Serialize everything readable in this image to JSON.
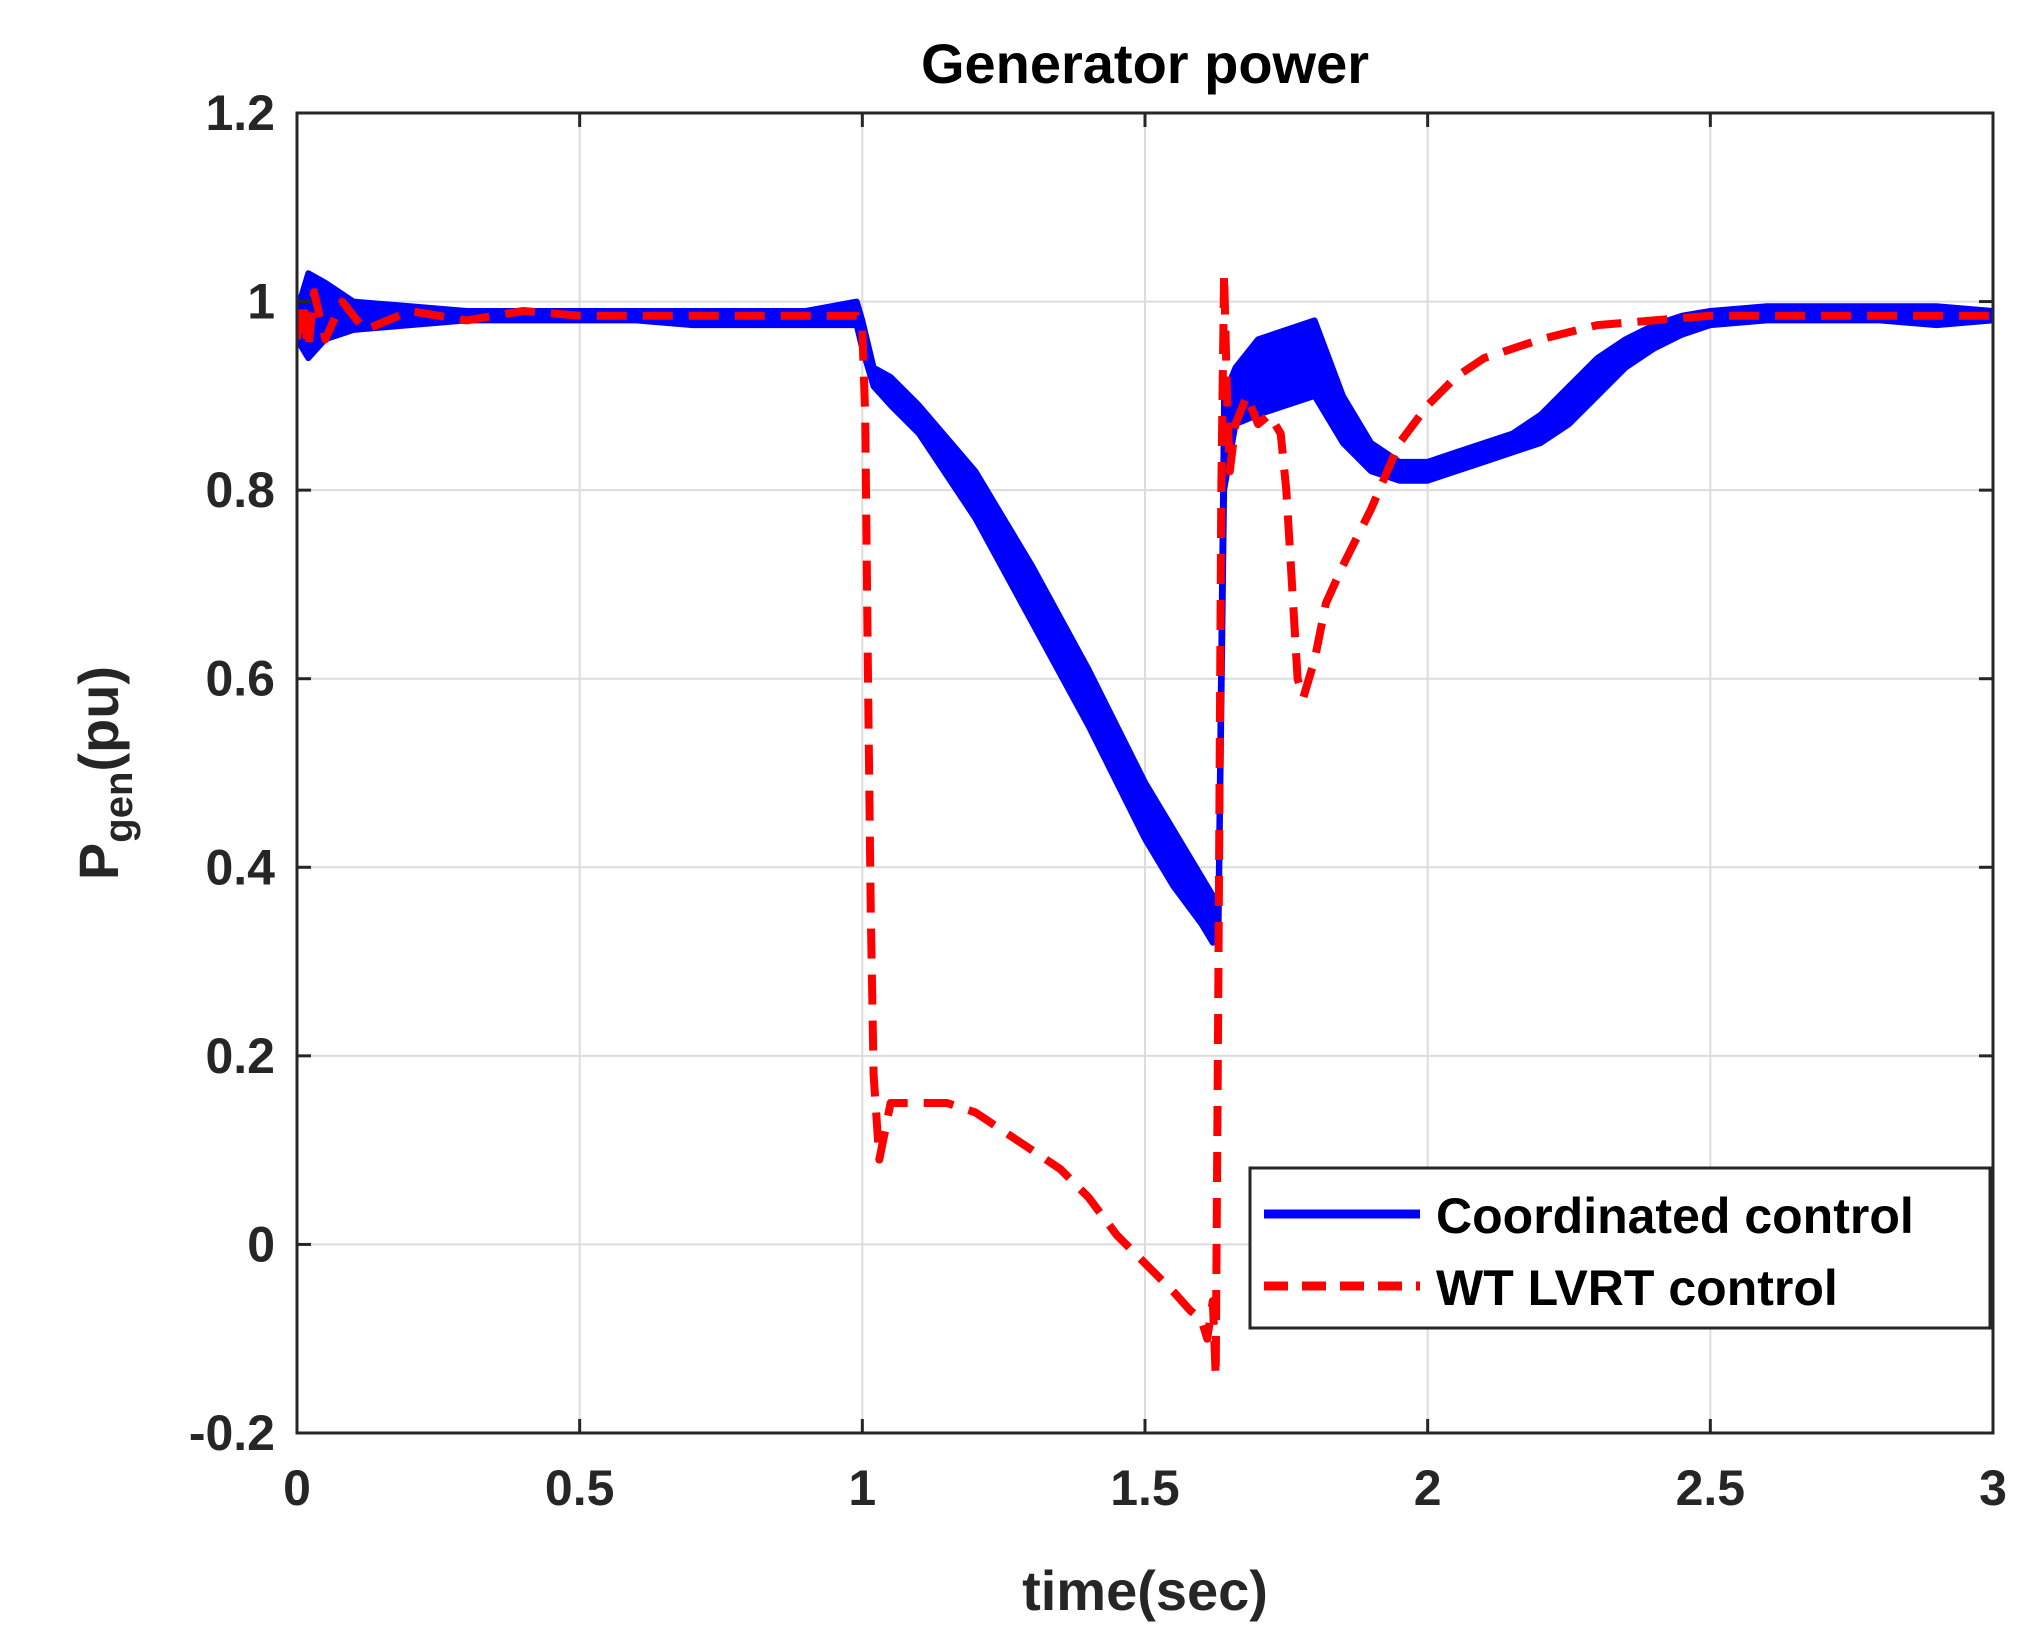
{
  "chart_data": {
    "type": "line",
    "title": "Generator power",
    "xlabel": "time(sec)",
    "ylabel_main": "P",
    "ylabel_sub": "gen",
    "ylabel_unit": "(pu)",
    "xlim": [
      0,
      3
    ],
    "ylim": [
      -0.2,
      1.2
    ],
    "xticks": [
      0,
      0.5,
      1,
      1.5,
      2,
      2.5,
      3
    ],
    "xtick_labels": [
      "0",
      "0.5",
      "1",
      "1.5",
      "2",
      "2.5",
      "3"
    ],
    "yticks": [
      -0.2,
      0,
      0.2,
      0.4,
      0.6,
      0.8,
      1,
      1.2
    ],
    "ytick_labels": [
      "-0.2",
      "0",
      "0.2",
      "0.4",
      "0.6",
      "0.8",
      "1",
      "1.2"
    ],
    "grid": true,
    "legend_position": "bottom-right",
    "series": [
      {
        "name": "Coordinated control",
        "color": "#0000ff",
        "style": "solid",
        "band": true,
        "x": [
          0,
          0.02,
          0.05,
          0.1,
          0.2,
          0.3,
          0.4,
          0.5,
          0.6,
          0.7,
          0.8,
          0.9,
          0.99,
          1.0,
          1.02,
          1.05,
          1.1,
          1.2,
          1.3,
          1.4,
          1.5,
          1.55,
          1.6,
          1.62,
          1.63,
          1.64,
          1.66,
          1.7,
          1.75,
          1.8,
          1.85,
          1.9,
          1.95,
          2.0,
          2.05,
          2.1,
          2.15,
          2.2,
          2.25,
          2.3,
          2.35,
          2.4,
          2.45,
          2.5,
          2.6,
          2.7,
          2.8,
          2.9,
          3.0
        ],
        "upper": [
          0.99,
          1.03,
          1.02,
          1.0,
          0.995,
          0.99,
          0.99,
          0.99,
          0.99,
          0.99,
          0.99,
          0.99,
          1.0,
          0.98,
          0.93,
          0.92,
          0.89,
          0.82,
          0.72,
          0.61,
          0.49,
          0.44,
          0.39,
          0.37,
          0.36,
          0.9,
          0.93,
          0.96,
          0.97,
          0.98,
          0.9,
          0.85,
          0.83,
          0.83,
          0.84,
          0.85,
          0.86,
          0.88,
          0.91,
          0.94,
          0.96,
          0.975,
          0.985,
          0.99,
          0.995,
          0.995,
          0.995,
          0.995,
          0.99
        ],
        "lower": [
          0.96,
          0.94,
          0.96,
          0.97,
          0.975,
          0.98,
          0.98,
          0.98,
          0.98,
          0.975,
          0.975,
          0.975,
          0.975,
          0.95,
          0.91,
          0.89,
          0.86,
          0.77,
          0.66,
          0.55,
          0.43,
          0.38,
          0.34,
          0.32,
          0.33,
          0.8,
          0.87,
          0.88,
          0.89,
          0.9,
          0.85,
          0.82,
          0.81,
          0.81,
          0.82,
          0.83,
          0.84,
          0.85,
          0.87,
          0.9,
          0.93,
          0.95,
          0.965,
          0.975,
          0.98,
          0.98,
          0.98,
          0.975,
          0.98
        ]
      },
      {
        "name": "WT LVRT control",
        "color": "#ff0000",
        "style": "dashed",
        "x": [
          0,
          0.01,
          0.02,
          0.03,
          0.05,
          0.08,
          0.12,
          0.2,
          0.3,
          0.4,
          0.5,
          0.6,
          0.7,
          0.8,
          0.9,
          0.99,
          1.0,
          1.005,
          1.01,
          1.015,
          1.02,
          1.03,
          1.05,
          1.1,
          1.15,
          1.2,
          1.25,
          1.3,
          1.35,
          1.4,
          1.45,
          1.5,
          1.55,
          1.58,
          1.6,
          1.61,
          1.62,
          1.625,
          1.63,
          1.635,
          1.64,
          1.645,
          1.65,
          1.66,
          1.68,
          1.7,
          1.72,
          1.74,
          1.75,
          1.76,
          1.77,
          1.78,
          1.8,
          1.82,
          1.85,
          1.9,
          1.95,
          2.0,
          2.05,
          2.1,
          2.2,
          2.3,
          2.4,
          2.5,
          2.6,
          2.7,
          2.8,
          2.9,
          3.0
        ],
        "y": [
          0.96,
          1.0,
          0.95,
          1.01,
          0.96,
          1.0,
          0.97,
          0.99,
          0.98,
          0.99,
          0.985,
          0.985,
          0.985,
          0.985,
          0.985,
          0.985,
          0.97,
          0.88,
          0.6,
          0.35,
          0.18,
          0.09,
          0.15,
          0.15,
          0.15,
          0.14,
          0.12,
          0.1,
          0.08,
          0.05,
          0.01,
          -0.02,
          -0.05,
          -0.07,
          -0.08,
          -0.1,
          -0.06,
          -0.14,
          0.3,
          0.8,
          1.03,
          0.9,
          0.82,
          0.87,
          0.9,
          0.87,
          0.88,
          0.86,
          0.8,
          0.7,
          0.6,
          0.58,
          0.62,
          0.68,
          0.72,
          0.78,
          0.85,
          0.89,
          0.92,
          0.94,
          0.96,
          0.975,
          0.98,
          0.985,
          0.985,
          0.985,
          0.985,
          0.985,
          0.985
        ]
      }
    ]
  }
}
